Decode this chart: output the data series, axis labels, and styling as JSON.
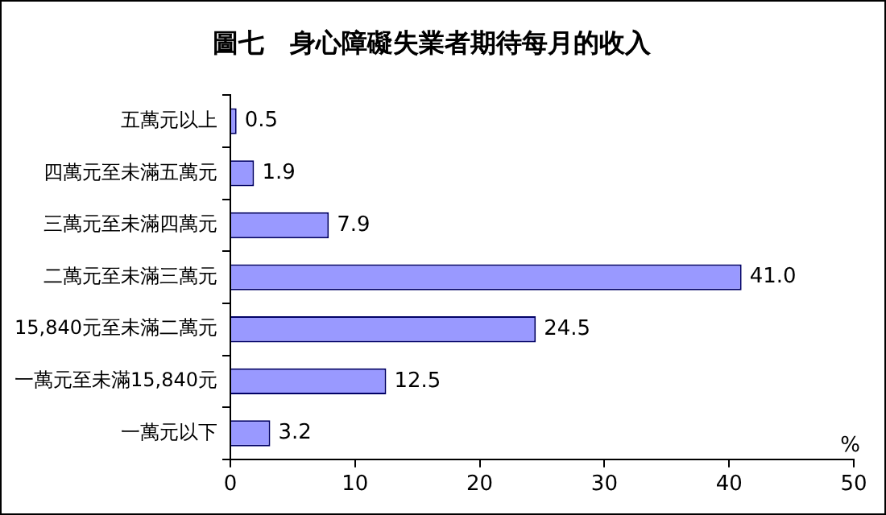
{
  "chart_data": {
    "type": "bar",
    "orientation": "horizontal",
    "title": "圖七　身心障礙失業者期待每月的收入",
    "xlabel": "%",
    "categories": [
      "五萬元以上",
      "四萬元至未滿五萬元",
      "三萬元至未滿四萬元",
      "二萬元至未滿三萬元",
      "15,840元至未滿二萬元",
      "一萬元至未滿15,840元",
      "一萬元以下"
    ],
    "values": [
      0.5,
      1.9,
      7.9,
      41.0,
      24.5,
      12.5,
      3.2
    ],
    "value_labels": [
      "0.5",
      "1.9",
      "7.9",
      "41.0",
      "24.5",
      "12.5",
      "3.2"
    ],
    "color": "#9999ff",
    "xlim": [
      0,
      50
    ],
    "xticks": [
      0,
      10,
      20,
      30,
      40,
      50
    ],
    "grid": false,
    "legend": false
  }
}
